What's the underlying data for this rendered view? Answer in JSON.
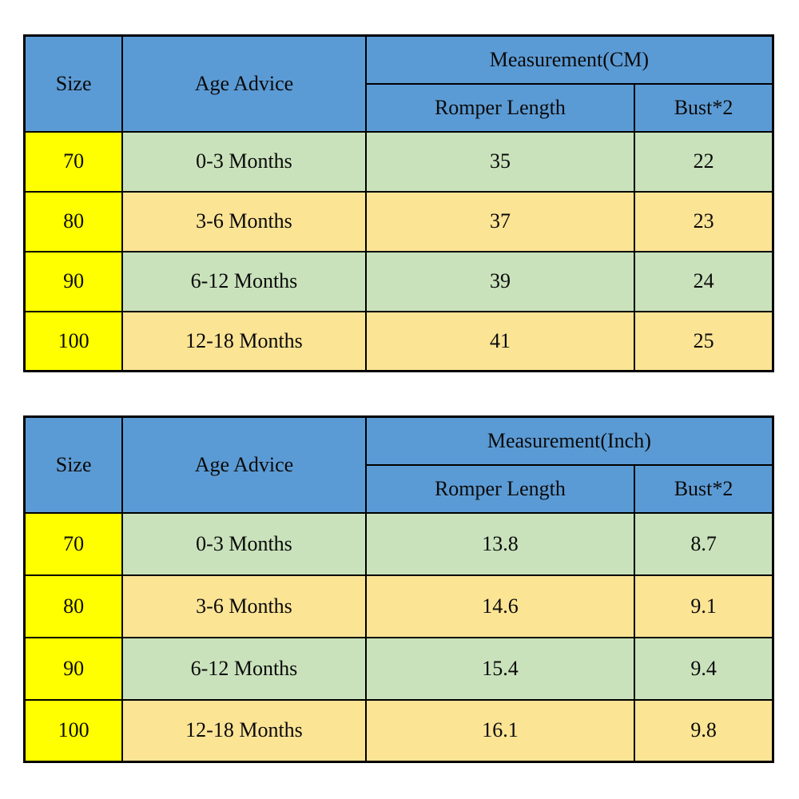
{
  "colors": {
    "header_bg": "#5B9BD5",
    "size_column_bg": "#FFFF00",
    "row_green_bg": "#C9E2BB",
    "row_tan_bg": "#FCE495",
    "border": "#000000",
    "text": "#0a0a0a",
    "page_bg": "#FFFFFF"
  },
  "chart_data": [
    {
      "type": "table",
      "title": "Measurement(CM)",
      "header": {
        "size": "Size",
        "age": "Age Advice",
        "measurement": "Measurement(CM)",
        "romper_length": "Romper Length",
        "bust": "Bust*2"
      },
      "rows": [
        {
          "size": "70",
          "age": "0-3 Months",
          "romper_length": "35",
          "bust": "22"
        },
        {
          "size": "80",
          "age": "3-6 Months",
          "romper_length": "37",
          "bust": "23"
        },
        {
          "size": "90",
          "age": "6-12 Months",
          "romper_length": "39",
          "bust": "24"
        },
        {
          "size": "100",
          "age": "12-18 Months",
          "romper_length": "41",
          "bust": "25"
        }
      ]
    },
    {
      "type": "table",
      "title": "Measurement(Inch)",
      "header": {
        "size": "Size",
        "age": "Age Advice",
        "measurement": "Measurement(Inch)",
        "romper_length": "Romper Length",
        "bust": "Bust*2"
      },
      "rows": [
        {
          "size": "70",
          "age": "0-3 Months",
          "romper_length": "13.8",
          "bust": "8.7"
        },
        {
          "size": "80",
          "age": "3-6 Months",
          "romper_length": "14.6",
          "bust": "9.1"
        },
        {
          "size": "90",
          "age": "6-12 Months",
          "romper_length": "15.4",
          "bust": "9.4"
        },
        {
          "size": "100",
          "age": "12-18 Months",
          "romper_length": "16.1",
          "bust": "9.8"
        }
      ]
    }
  ]
}
